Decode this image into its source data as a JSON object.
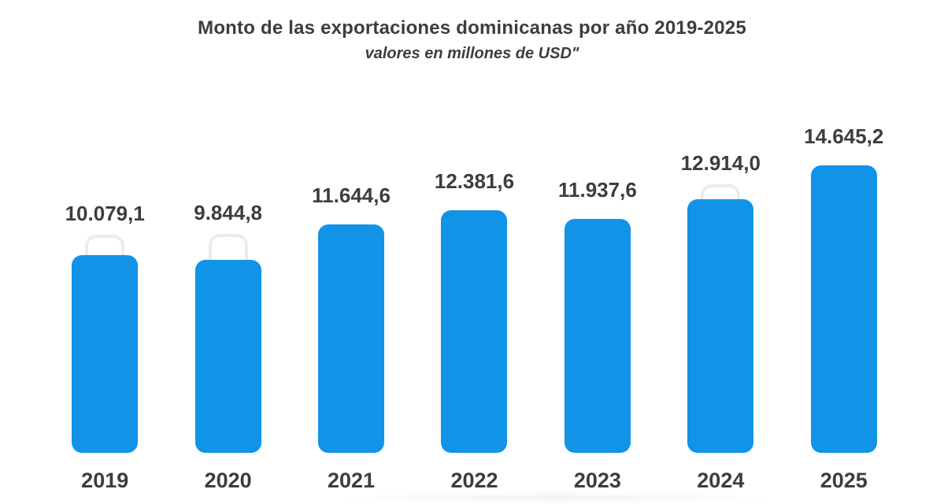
{
  "chart_data": {
    "type": "bar",
    "title": "Monto de las exportaciones dominicanas por año 2019-2025",
    "subtitle": "valores en millones de USD\"",
    "categories": [
      "2019",
      "2020",
      "2021",
      "2022",
      "2023",
      "2024",
      "2025"
    ],
    "values": [
      10079.1,
      9844.8,
      11644.6,
      12381.6,
      11937.6,
      12914.0,
      14645.2
    ],
    "value_labels": [
      "10.079,1",
      "9.844,8",
      "11.644,6",
      "12.381,6",
      "11.937,6",
      "12.914,0",
      "14.645,2"
    ],
    "xlabel": "",
    "ylabel": "",
    "ylim": [
      0,
      16000
    ],
    "grid": false,
    "legend": false,
    "bar_color": "#1193e8",
    "label_color": "#3d3d3d",
    "background_color": "#ffffff",
    "ghost_outline_color": "#ececec",
    "ghost_outlines": [
      {
        "index": 0,
        "overhang": 26
      },
      {
        "index": 1,
        "overhang": 33
      },
      {
        "index": 5,
        "overhang": 19
      }
    ]
  }
}
